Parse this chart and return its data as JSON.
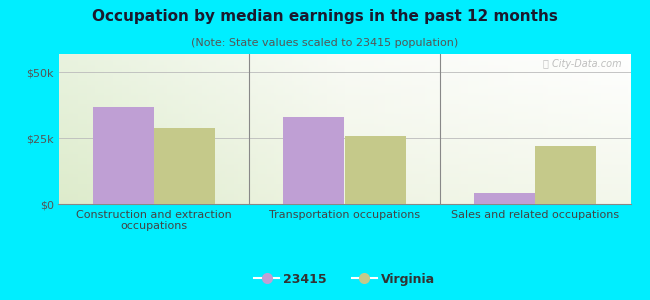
{
  "title": "Occupation by median earnings in the past 12 months",
  "subtitle": "(Note: State values scaled to 23415 population)",
  "categories": [
    "Construction and extraction\noccupations",
    "Transportation occupations",
    "Sales and related occupations"
  ],
  "values_23415": [
    37000,
    33000,
    4000
  ],
  "values_virginia": [
    29000,
    26000,
    22000
  ],
  "bar_color_23415": "#bf9fd4",
  "bar_color_virginia": "#c5c98a",
  "background_outer": "#00eeff",
  "ylim": [
    0,
    57000
  ],
  "yticks": [
    0,
    25000,
    50000
  ],
  "ytick_labels": [
    "$0",
    "$25k",
    "$50k"
  ],
  "legend_labels": [
    "23415",
    "Virginia"
  ],
  "watermark": "Ⓣ City-Data.com",
  "bar_width": 0.32,
  "title_fontsize": 11,
  "subtitle_fontsize": 8,
  "tick_fontsize": 8,
  "legend_fontsize": 9
}
